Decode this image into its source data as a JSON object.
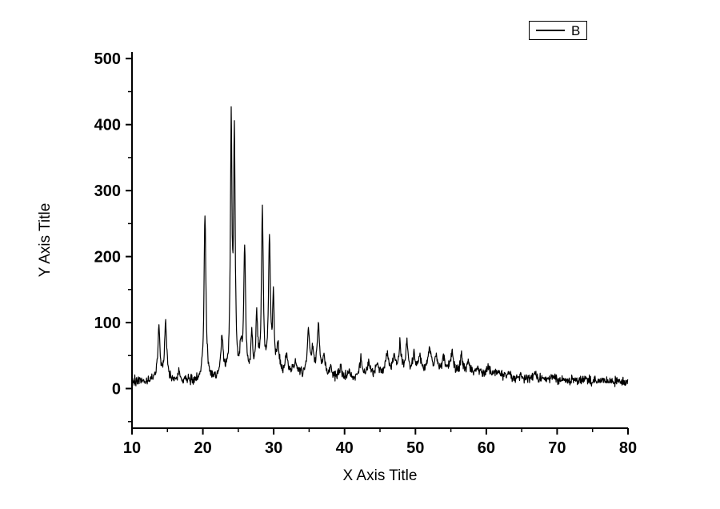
{
  "chart_data": {
    "type": "line",
    "title": "",
    "xlabel": "X Axis Title",
    "ylabel": "Y Axis Title",
    "xlim": [
      10,
      80
    ],
    "ylim": [
      -60,
      510
    ],
    "x_ticks": [
      10,
      20,
      30,
      40,
      50,
      60,
      70,
      80
    ],
    "x_minor_ticks": [
      15,
      25,
      35,
      45,
      55,
      65,
      75
    ],
    "y_ticks": [
      0,
      100,
      200,
      300,
      400,
      500
    ],
    "y_minor_ticks": [
      -50,
      50,
      150,
      250,
      350,
      450
    ],
    "grid": false,
    "axis_color": "#000000",
    "background": "#ffffff",
    "legend": {
      "position": "top-right",
      "entries": [
        {
          "label": "B",
          "color": "#000000"
        }
      ]
    },
    "series": [
      {
        "name": "B",
        "color": "#000000",
        "description": "noisy powder-diffraction-style trace; peaks given as [x_position, height_above_baseline, half_width]; baseline given as piecewise [x, y] points",
        "sample_step": 0.05,
        "noise_amplitude": 5,
        "noise_seed": 20,
        "baseline": [
          [
            10,
            11
          ],
          [
            19,
            11
          ],
          [
            21,
            12
          ],
          [
            23,
            14
          ],
          [
            26,
            15
          ],
          [
            29,
            18
          ],
          [
            31,
            22
          ],
          [
            33,
            24
          ],
          [
            34,
            21
          ],
          [
            36,
            19
          ],
          [
            38,
            17
          ],
          [
            41,
            15
          ],
          [
            44,
            19
          ],
          [
            46,
            23
          ],
          [
            49,
            25
          ],
          [
            53,
            26
          ],
          [
            56,
            24
          ],
          [
            59,
            21
          ],
          [
            62,
            18
          ],
          [
            66,
            15
          ],
          [
            70,
            13
          ],
          [
            75,
            12
          ],
          [
            80,
            10
          ]
        ],
        "peaks": [
          [
            13.8,
            80,
            0.18
          ],
          [
            14.75,
            90,
            0.18
          ],
          [
            16.6,
            12,
            0.2
          ],
          [
            20.3,
            250,
            0.16
          ],
          [
            22.7,
            60,
            0.2
          ],
          [
            24.0,
            380,
            0.13
          ],
          [
            24.45,
            355,
            0.13
          ],
          [
            25.35,
            40,
            0.15
          ],
          [
            25.9,
            195,
            0.15
          ],
          [
            26.9,
            62,
            0.15
          ],
          [
            27.6,
            88,
            0.15
          ],
          [
            28.4,
            248,
            0.15
          ],
          [
            29.4,
            205,
            0.15
          ],
          [
            29.95,
            110,
            0.13
          ],
          [
            30.6,
            42,
            0.18
          ],
          [
            31.8,
            25,
            0.2
          ],
          [
            33.0,
            12,
            0.2
          ],
          [
            34.9,
            65,
            0.2
          ],
          [
            35.5,
            34,
            0.18
          ],
          [
            36.3,
            76,
            0.2
          ],
          [
            37.1,
            30,
            0.18
          ],
          [
            38.0,
            12,
            0.2
          ],
          [
            39.4,
            16,
            0.2
          ],
          [
            40.6,
            10,
            0.2
          ],
          [
            42.3,
            26,
            0.22
          ],
          [
            43.4,
            20,
            0.22
          ],
          [
            44.6,
            18,
            0.22
          ],
          [
            46.0,
            32,
            0.22
          ],
          [
            47.0,
            24,
            0.2
          ],
          [
            47.8,
            40,
            0.2
          ],
          [
            48.8,
            42,
            0.2
          ],
          [
            49.8,
            26,
            0.2
          ],
          [
            50.6,
            22,
            0.2
          ],
          [
            52.0,
            38,
            0.22
          ],
          [
            52.9,
            22,
            0.2
          ],
          [
            54.0,
            22,
            0.22
          ],
          [
            55.2,
            28,
            0.22
          ],
          [
            56.5,
            24,
            0.22
          ],
          [
            57.5,
            14,
            0.22
          ],
          [
            58.8,
            10,
            0.22
          ],
          [
            60.3,
            16,
            0.25
          ],
          [
            61.6,
            10,
            0.25
          ],
          [
            63.2,
            8,
            0.25
          ],
          [
            66.8,
            7,
            0.25
          ],
          [
            69.5,
            5,
            0.25
          ],
          [
            74.0,
            4,
            0.3
          ]
        ]
      }
    ]
  }
}
